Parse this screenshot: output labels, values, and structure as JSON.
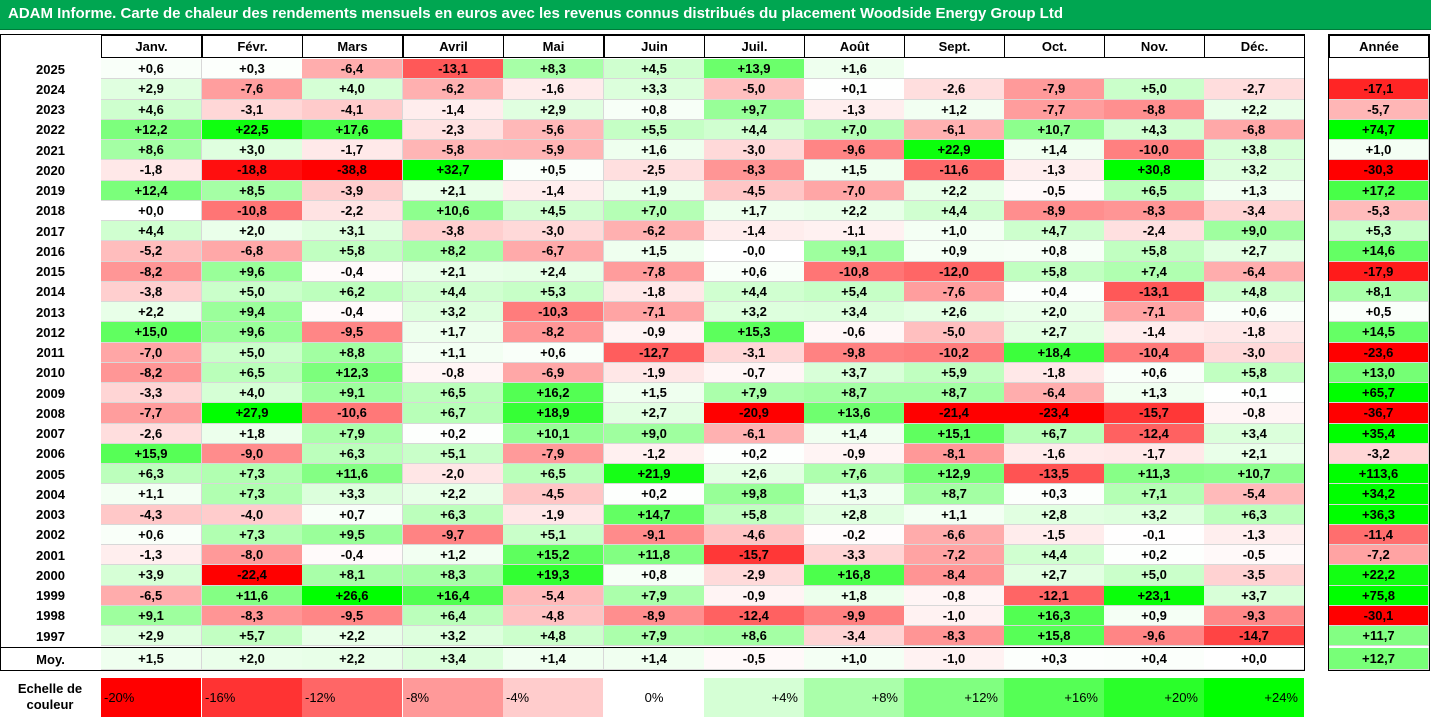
{
  "title": "ADAM Informe. Carte de chaleur des rendements mensuels en euros avec les revenus connus distribués du placement Woodside Energy Group Ltd",
  "colors": {
    "title_bg": "#00a651",
    "negative": "#ff0000",
    "positive": "#00ff00",
    "neutral": "#ffffff"
  },
  "months": [
    "Janv.",
    "Févr.",
    "Mars",
    "Avril",
    "Mai",
    "Juin",
    "Juil.",
    "Août",
    "Sept.",
    "Oct.",
    "Nov.",
    "Déc."
  ],
  "annual_header": "Année",
  "avg_label": "Moy.",
  "scale_label": [
    "Echelle de",
    "couleur"
  ],
  "scale": [
    "-20%",
    "-16%",
    "-12%",
    "-8%",
    "-4%",
    "0%",
    "+4%",
    "+8%",
    "+12%",
    "+16%",
    "+20%",
    "+24%"
  ],
  "chart_data": {
    "type": "heatmap",
    "title": "ADAM Informe. Carte de chaleur des rendements mensuels en euros avec les revenus connus distribués du placement Woodside Energy Group Ltd",
    "columns": [
      "Janv.",
      "Févr.",
      "Mars",
      "Avril",
      "Mai",
      "Juin",
      "Juil.",
      "Août",
      "Sept.",
      "Oct.",
      "Nov.",
      "Déc."
    ],
    "rows": [
      {
        "year": "2025",
        "values": [
          "+0,6",
          "+0,3",
          "-6,4",
          "-13,1",
          "+8,3",
          "+4,5",
          "+13,9",
          "+1,6",
          "",
          "",
          "",
          ""
        ],
        "annual": ""
      },
      {
        "year": "2024",
        "values": [
          "+2,9",
          "-7,6",
          "+4,0",
          "-6,2",
          "-1,6",
          "+3,3",
          "-5,0",
          "+0,1",
          "-2,6",
          "-7,9",
          "+5,0",
          "-2,7"
        ],
        "annual": "-17,1"
      },
      {
        "year": "2023",
        "values": [
          "+4,6",
          "-3,1",
          "-4,1",
          "-1,4",
          "+2,9",
          "+0,8",
          "+9,7",
          "-1,3",
          "+1,2",
          "-7,7",
          "-8,8",
          "+2,2"
        ],
        "annual": "-5,7"
      },
      {
        "year": "2022",
        "values": [
          "+12,2",
          "+22,5",
          "+17,6",
          "-2,3",
          "-5,6",
          "+5,5",
          "+4,4",
          "+7,0",
          "-6,1",
          "+10,7",
          "+4,3",
          "-6,8"
        ],
        "annual": "+74,7"
      },
      {
        "year": "2021",
        "values": [
          "+8,6",
          "+3,0",
          "-1,7",
          "-5,8",
          "-5,9",
          "+1,6",
          "-3,0",
          "-9,6",
          "+22,9",
          "+1,4",
          "-10,0",
          "+3,8"
        ],
        "annual": "+1,0"
      },
      {
        "year": "2020",
        "values": [
          "-1,8",
          "-18,8",
          "-38,8",
          "+32,7",
          "+0,5",
          "-2,5",
          "-8,3",
          "+1,5",
          "-11,6",
          "-1,3",
          "+30,8",
          "+3,2"
        ],
        "annual": "-30,3"
      },
      {
        "year": "2019",
        "values": [
          "+12,4",
          "+8,5",
          "-3,9",
          "+2,1",
          "-1,4",
          "+1,9",
          "-4,5",
          "-7,0",
          "+2,2",
          "-0,5",
          "+6,5",
          "+1,3"
        ],
        "annual": "+17,2"
      },
      {
        "year": "2018",
        "values": [
          "+0,0",
          "-10,8",
          "-2,2",
          "+10,6",
          "+4,5",
          "+7,0",
          "+1,7",
          "+2,2",
          "+4,4",
          "-8,9",
          "-8,3",
          "-3,4"
        ],
        "annual": "-5,3"
      },
      {
        "year": "2017",
        "values": [
          "+4,4",
          "+2,0",
          "+3,1",
          "-3,8",
          "-3,0",
          "-6,2",
          "-1,4",
          "-1,1",
          "+1,0",
          "+4,7",
          "-2,4",
          "+9,0"
        ],
        "annual": "+5,3"
      },
      {
        "year": "2016",
        "values": [
          "-5,2",
          "-6,8",
          "+5,8",
          "+8,2",
          "-6,7",
          "+1,5",
          "-0,0",
          "+9,1",
          "+0,9",
          "+0,8",
          "+5,8",
          "+2,7"
        ],
        "annual": "+14,6"
      },
      {
        "year": "2015",
        "values": [
          "-8,2",
          "+9,6",
          "-0,4",
          "+2,1",
          "+2,4",
          "-7,8",
          "+0,6",
          "-10,8",
          "-12,0",
          "+5,8",
          "+7,4",
          "-6,4"
        ],
        "annual": "-17,9"
      },
      {
        "year": "2014",
        "values": [
          "-3,8",
          "+5,0",
          "+6,2",
          "+4,4",
          "+5,3",
          "-1,8",
          "+4,4",
          "+5,4",
          "-7,6",
          "+0,4",
          "-13,1",
          "+4,8"
        ],
        "annual": "+8,1"
      },
      {
        "year": "2013",
        "values": [
          "+2,2",
          "+9,4",
          "-0,4",
          "+3,2",
          "-10,3",
          "-7,1",
          "+3,2",
          "+3,4",
          "+2,6",
          "+2,0",
          "-7,1",
          "+0,6"
        ],
        "annual": "+0,5"
      },
      {
        "year": "2012",
        "values": [
          "+15,0",
          "+9,6",
          "-9,5",
          "+1,7",
          "-8,2",
          "-0,9",
          "+15,3",
          "-0,6",
          "-5,0",
          "+2,7",
          "-1,4",
          "-1,8"
        ],
        "annual": "+14,5"
      },
      {
        "year": "2011",
        "values": [
          "-7,0",
          "+5,0",
          "+8,8",
          "+1,1",
          "+0,6",
          "-12,7",
          "-3,1",
          "-9,8",
          "-10,2",
          "+18,4",
          "-10,4",
          "-3,0"
        ],
        "annual": "-23,6"
      },
      {
        "year": "2010",
        "values": [
          "-8,2",
          "+6,5",
          "+12,3",
          "-0,8",
          "-6,9",
          "-1,9",
          "-0,7",
          "+3,7",
          "+5,9",
          "-1,8",
          "+0,6",
          "+5,8"
        ],
        "annual": "+13,0"
      },
      {
        "year": "2009",
        "values": [
          "-3,3",
          "+4,0",
          "+9,1",
          "+6,5",
          "+16,2",
          "+1,5",
          "+7,9",
          "+8,7",
          "+8,7",
          "-6,4",
          "+1,3",
          "+0,1"
        ],
        "annual": "+65,7"
      },
      {
        "year": "2008",
        "values": [
          "-7,7",
          "+27,9",
          "-10,6",
          "+6,7",
          "+18,9",
          "+2,7",
          "-20,9",
          "+13,6",
          "-21,4",
          "-23,4",
          "-15,7",
          "-0,8"
        ],
        "annual": "-36,7"
      },
      {
        "year": "2007",
        "values": [
          "-2,6",
          "+1,8",
          "+7,9",
          "+0,2",
          "+10,1",
          "+9,0",
          "-6,1",
          "+1,4",
          "+15,1",
          "+6,7",
          "-12,4",
          "+3,4"
        ],
        "annual": "+35,4"
      },
      {
        "year": "2006",
        "values": [
          "+15,9",
          "-9,0",
          "+6,3",
          "+5,1",
          "-7,9",
          "-1,2",
          "+0,2",
          "-0,9",
          "-8,1",
          "-1,6",
          "-1,7",
          "+2,1"
        ],
        "annual": "-3,2"
      },
      {
        "year": "2005",
        "values": [
          "+6,3",
          "+7,3",
          "+11,6",
          "-2,0",
          "+6,5",
          "+21,9",
          "+2,6",
          "+7,6",
          "+12,9",
          "-13,5",
          "+11,3",
          "+10,7"
        ],
        "annual": "+113,6"
      },
      {
        "year": "2004",
        "values": [
          "+1,1",
          "+7,3",
          "+3,3",
          "+2,2",
          "-4,5",
          "+0,2",
          "+9,8",
          "+1,3",
          "+8,7",
          "+0,3",
          "+7,1",
          "-5,4"
        ],
        "annual": "+34,2"
      },
      {
        "year": "2003",
        "values": [
          "-4,3",
          "-4,0",
          "+0,7",
          "+6,3",
          "-1,9",
          "+14,7",
          "+5,8",
          "+2,8",
          "+1,1",
          "+2,8",
          "+3,2",
          "+6,3"
        ],
        "annual": "+36,3"
      },
      {
        "year": "2002",
        "values": [
          "+0,6",
          "+7,3",
          "+9,5",
          "-9,7",
          "+5,1",
          "-9,1",
          "-4,6",
          "-0,2",
          "-6,6",
          "-1,5",
          "-0,1",
          "-1,3"
        ],
        "annual": "-11,4"
      },
      {
        "year": "2001",
        "values": [
          "-1,3",
          "-8,0",
          "-0,4",
          "+1,2",
          "+15,2",
          "+11,8",
          "-15,7",
          "-3,3",
          "-7,2",
          "+4,4",
          "+0,2",
          "-0,5"
        ],
        "annual": "-7,2"
      },
      {
        "year": "2000",
        "values": [
          "+3,9",
          "-22,4",
          "+8,1",
          "+8,3",
          "+19,3",
          "+0,8",
          "-2,9",
          "+16,8",
          "-8,4",
          "+2,7",
          "+5,0",
          "-3,5"
        ],
        "annual": "+22,2"
      },
      {
        "year": "1999",
        "values": [
          "-6,5",
          "+11,6",
          "+26,6",
          "+16,4",
          "-5,4",
          "+7,9",
          "-0,9",
          "+1,8",
          "-0,8",
          "-12,1",
          "+23,1",
          "+3,7"
        ],
        "annual": "+75,8"
      },
      {
        "year": "1998",
        "values": [
          "+9,1",
          "-8,3",
          "-9,5",
          "+6,4",
          "-4,8",
          "-8,9",
          "-12,4",
          "-9,9",
          "-1,0",
          "+16,3",
          "+0,9",
          "-9,3"
        ],
        "annual": "-30,1"
      },
      {
        "year": "1997",
        "values": [
          "+2,9",
          "+5,7",
          "+2,2",
          "+3,2",
          "+4,8",
          "+7,9",
          "+8,6",
          "-3,4",
          "-8,3",
          "+15,8",
          "-9,6",
          "-14,7"
        ],
        "annual": "+11,7"
      }
    ],
    "average": {
      "values": [
        "+1,5",
        "+2,0",
        "+2,2",
        "+3,4",
        "+1,4",
        "+1,4",
        "-0,5",
        "+1,0",
        "-1,0",
        "+0,3",
        "+0,4",
        "+0,0"
      ],
      "annual": "+12,7"
    },
    "color_scale": {
      "min": -20,
      "max": 24,
      "negative_color": "#ff0000",
      "positive_color": "#00ff00"
    }
  }
}
